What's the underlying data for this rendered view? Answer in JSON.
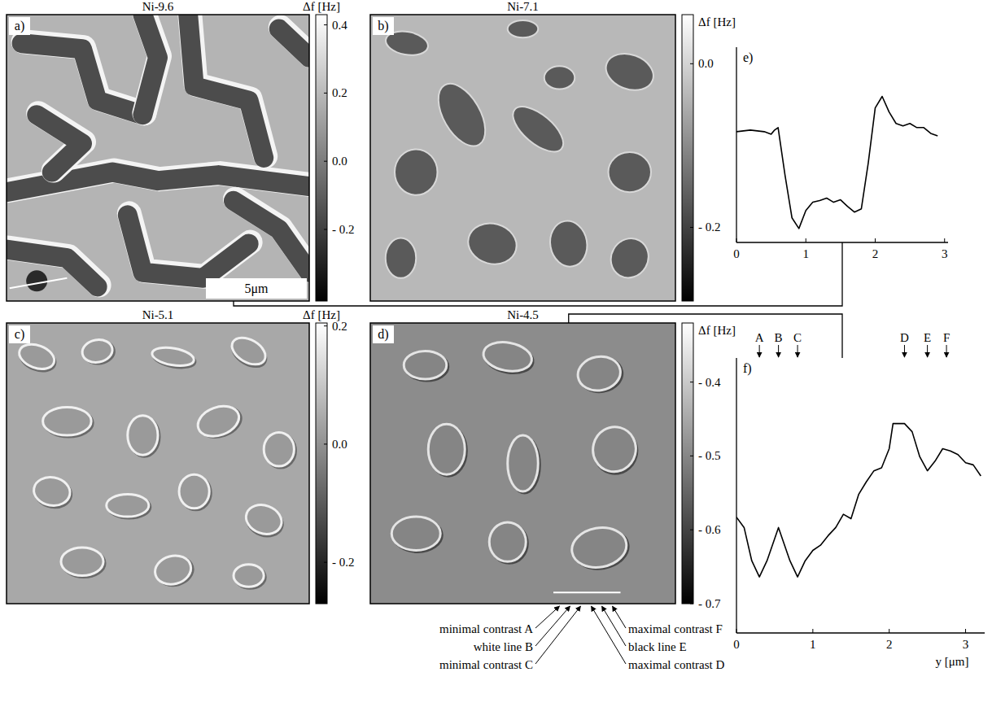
{
  "images": [
    {
      "letter": "a)",
      "title": "Ni-9.6",
      "scale_bar": "5μm",
      "colorbar": {
        "label": "Δf [Hz]",
        "range": [
          -0.41,
          0.43
        ],
        "ticks": [
          0.4,
          0.2,
          {
            "value": 0,
            "label": "0.0"
          },
          {
            "value": -0.2,
            "label": "- 0.2"
          }
        ]
      }
    },
    {
      "letter": "b)",
      "title": "Ni-7.1",
      "colorbar": {
        "label": "Δf [Hz]",
        "range": [
          -0.29,
          0.06
        ],
        "ticks": [
          {
            "value": 0,
            "label": "0.0"
          },
          {
            "value": -0.2,
            "label": "- 0.2"
          }
        ]
      }
    },
    {
      "letter": "c)",
      "title": "Ni-5.1",
      "colorbar": {
        "label": "Δf [Hz]",
        "range": [
          -0.27,
          0.205
        ],
        "ticks": [
          0.2,
          {
            "value": 0,
            "label": "0.0"
          },
          {
            "value": -0.2,
            "label": "- 0.2"
          }
        ]
      }
    },
    {
      "letter": "d)",
      "title": "Ni-4.5",
      "colorbar": {
        "label": "Δf [Hz]",
        "range": [
          -0.7,
          -0.32
        ],
        "ticks": [
          {
            "value": -0.4,
            "label": "- 0.4"
          },
          {
            "value": -0.5,
            "label": "- 0.5"
          },
          {
            "value": -0.6,
            "label": "- 0.6"
          },
          {
            "value": -0.7,
            "label": "- 0.7"
          }
        ]
      },
      "annotations": [
        "minimal contrast A",
        "white line B",
        "minimal contrast C",
        "maximal contrast D",
        "black line E",
        "maximal contrast F"
      ]
    }
  ],
  "chart_data": [
    {
      "type": "line",
      "title": "e)",
      "color": "#000000",
      "tick_labels": "x",
      "x": [
        0,
        0.2,
        0.4,
        0.5,
        0.55,
        0.6,
        0.7,
        0.8,
        0.9,
        1.0,
        1.1,
        1.2,
        1.3,
        1.4,
        1.5,
        1.6,
        1.7,
        1.8,
        1.9,
        2.0,
        2.1,
        2.2,
        2.3,
        2.4,
        2.5,
        2.6,
        2.7,
        2.8,
        2.9
      ],
      "values": [
        -0.083,
        -0.081,
        -0.083,
        -0.086,
        -0.081,
        -0.078,
        -0.136,
        -0.188,
        -0.201,
        -0.179,
        -0.169,
        -0.167,
        -0.164,
        -0.169,
        -0.166,
        -0.174,
        -0.181,
        -0.177,
        -0.121,
        -0.054,
        -0.04,
        -0.059,
        -0.073,
        -0.076,
        -0.073,
        -0.078,
        -0.078,
        -0.085,
        -0.088
      ],
      "xlim": [
        0,
        3.05
      ],
      "xticks": [
        0,
        1,
        2,
        3
      ],
      "ylim": [
        -0.218,
        0.02
      ]
    },
    {
      "type": "line",
      "title": "f)",
      "xlabel": "y [μm]",
      "color": "#000000",
      "tick_labels": "x",
      "x": [
        0,
        0.1,
        0.2,
        0.3,
        0.4,
        0.55,
        0.7,
        0.8,
        0.9,
        1.0,
        1.1,
        1.2,
        1.3,
        1.4,
        1.5,
        1.6,
        1.7,
        1.8,
        1.9,
        2.0,
        2.05,
        2.2,
        2.3,
        2.4,
        2.5,
        2.6,
        2.7,
        2.8,
        2.9,
        3.0,
        3.1,
        3.2
      ],
      "values": [
        -0.583,
        -0.597,
        -0.642,
        -0.664,
        -0.642,
        -0.597,
        -0.642,
        -0.664,
        -0.642,
        -0.628,
        -0.621,
        -0.608,
        -0.597,
        -0.579,
        -0.585,
        -0.552,
        -0.535,
        -0.52,
        -0.516,
        -0.49,
        -0.456,
        -0.456,
        -0.467,
        -0.501,
        -0.52,
        -0.507,
        -0.49,
        -0.493,
        -0.498,
        -0.509,
        -0.512,
        -0.527
      ],
      "xlim": [
        0,
        3.25
      ],
      "xticks": [
        0,
        1,
        2,
        3
      ],
      "ylim": [
        -0.74,
        -0.367
      ],
      "annotations": [
        {
          "text": "A",
          "x": 0.3
        },
        {
          "text": "B",
          "x": 0.55
        },
        {
          "text": "C",
          "x": 0.8
        },
        {
          "text": "D",
          "x": 2.2
        },
        {
          "text": "E",
          "x": 2.5
        },
        {
          "text": "F",
          "x": 2.75
        }
      ]
    }
  ]
}
